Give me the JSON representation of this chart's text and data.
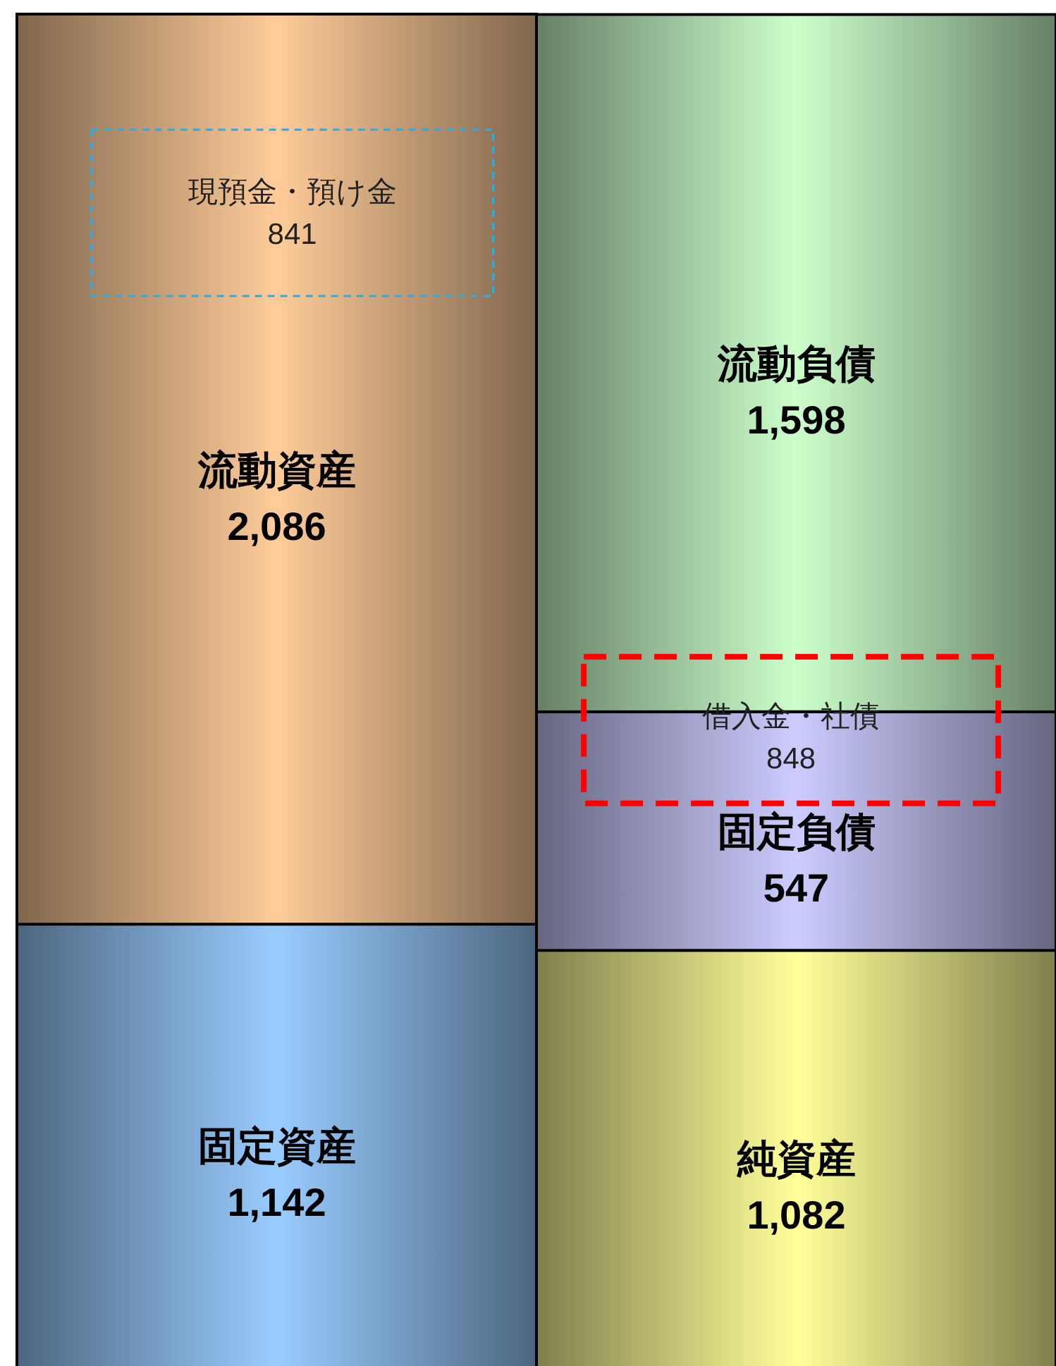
{
  "chart_data": {
    "type": "bar",
    "stacked": true,
    "categories": [
      null,
      null
    ],
    "series": [
      {
        "name": "固定資産",
        "color": "#99ccff",
        "values": [
          1142,
          null
        ],
        "value_labels": [
          "1,142",
          null
        ]
      },
      {
        "name": "流動資産",
        "color": "#ffcc99",
        "values": [
          2086,
          null
        ],
        "value_labels": [
          "2,086",
          null
        ]
      },
      {
        "name": "純資産",
        "color": "#ffff99",
        "values": [
          null,
          1082
        ],
        "value_labels": [
          null,
          "1,082"
        ]
      },
      {
        "name": "固定負債",
        "color": "#ccccff",
        "values": [
          null,
          547
        ],
        "value_labels": [
          null,
          "547"
        ]
      },
      {
        "name": "流動負債",
        "color": "#ccffcc",
        "values": [
          null,
          1598
        ],
        "value_labels": [
          null,
          "1,598"
        ]
      }
    ],
    "annotations": [
      "現預金・預け金\n841",
      "借入金・社債\n848"
    ]
  }
}
